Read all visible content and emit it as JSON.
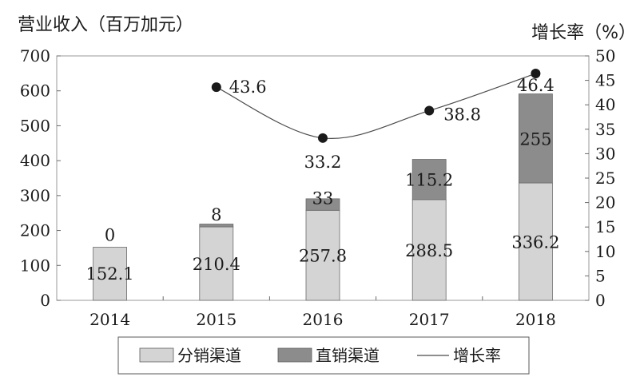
{
  "chart_data": {
    "type": "bar",
    "stacked": true,
    "categories": [
      "2014",
      "2015",
      "2016",
      "2017",
      "2018"
    ],
    "series": [
      {
        "name": "分销渠道",
        "axis": "left",
        "values": [
          152.1,
          210.4,
          257.8,
          288.5,
          336.2
        ],
        "labels": [
          "152.1",
          "210.4",
          "257.8",
          "288.5",
          "336.2"
        ],
        "color": "#d4d4d4"
      },
      {
        "name": "直销渠道",
        "axis": "left",
        "values": [
          0,
          8,
          33,
          115.2,
          255
        ],
        "labels": [
          "0",
          "8",
          "33",
          "115.2",
          "255"
        ],
        "color": "#8c8c8c"
      }
    ],
    "line_series": {
      "name": "增长率",
      "axis": "right",
      "values": [
        null,
        43.6,
        33.2,
        38.8,
        46.4
      ],
      "labels": [
        "",
        "43.6",
        "33.2",
        "38.8",
        "46.4"
      ],
      "color": "#4a4a4a"
    },
    "ylabel_left": "营业收入（百万加元）",
    "ylabel_right": "增长率（%）",
    "ylim_left": [
      0,
      700
    ],
    "yticks_left": [
      0,
      100,
      200,
      300,
      400,
      500,
      600,
      700
    ],
    "ylim_right": [
      0,
      50
    ],
    "yticks_right": [
      0,
      5,
      10,
      15,
      20,
      25,
      30,
      35,
      40,
      45,
      50
    ],
    "grid": false,
    "legend_position": "bottom"
  }
}
